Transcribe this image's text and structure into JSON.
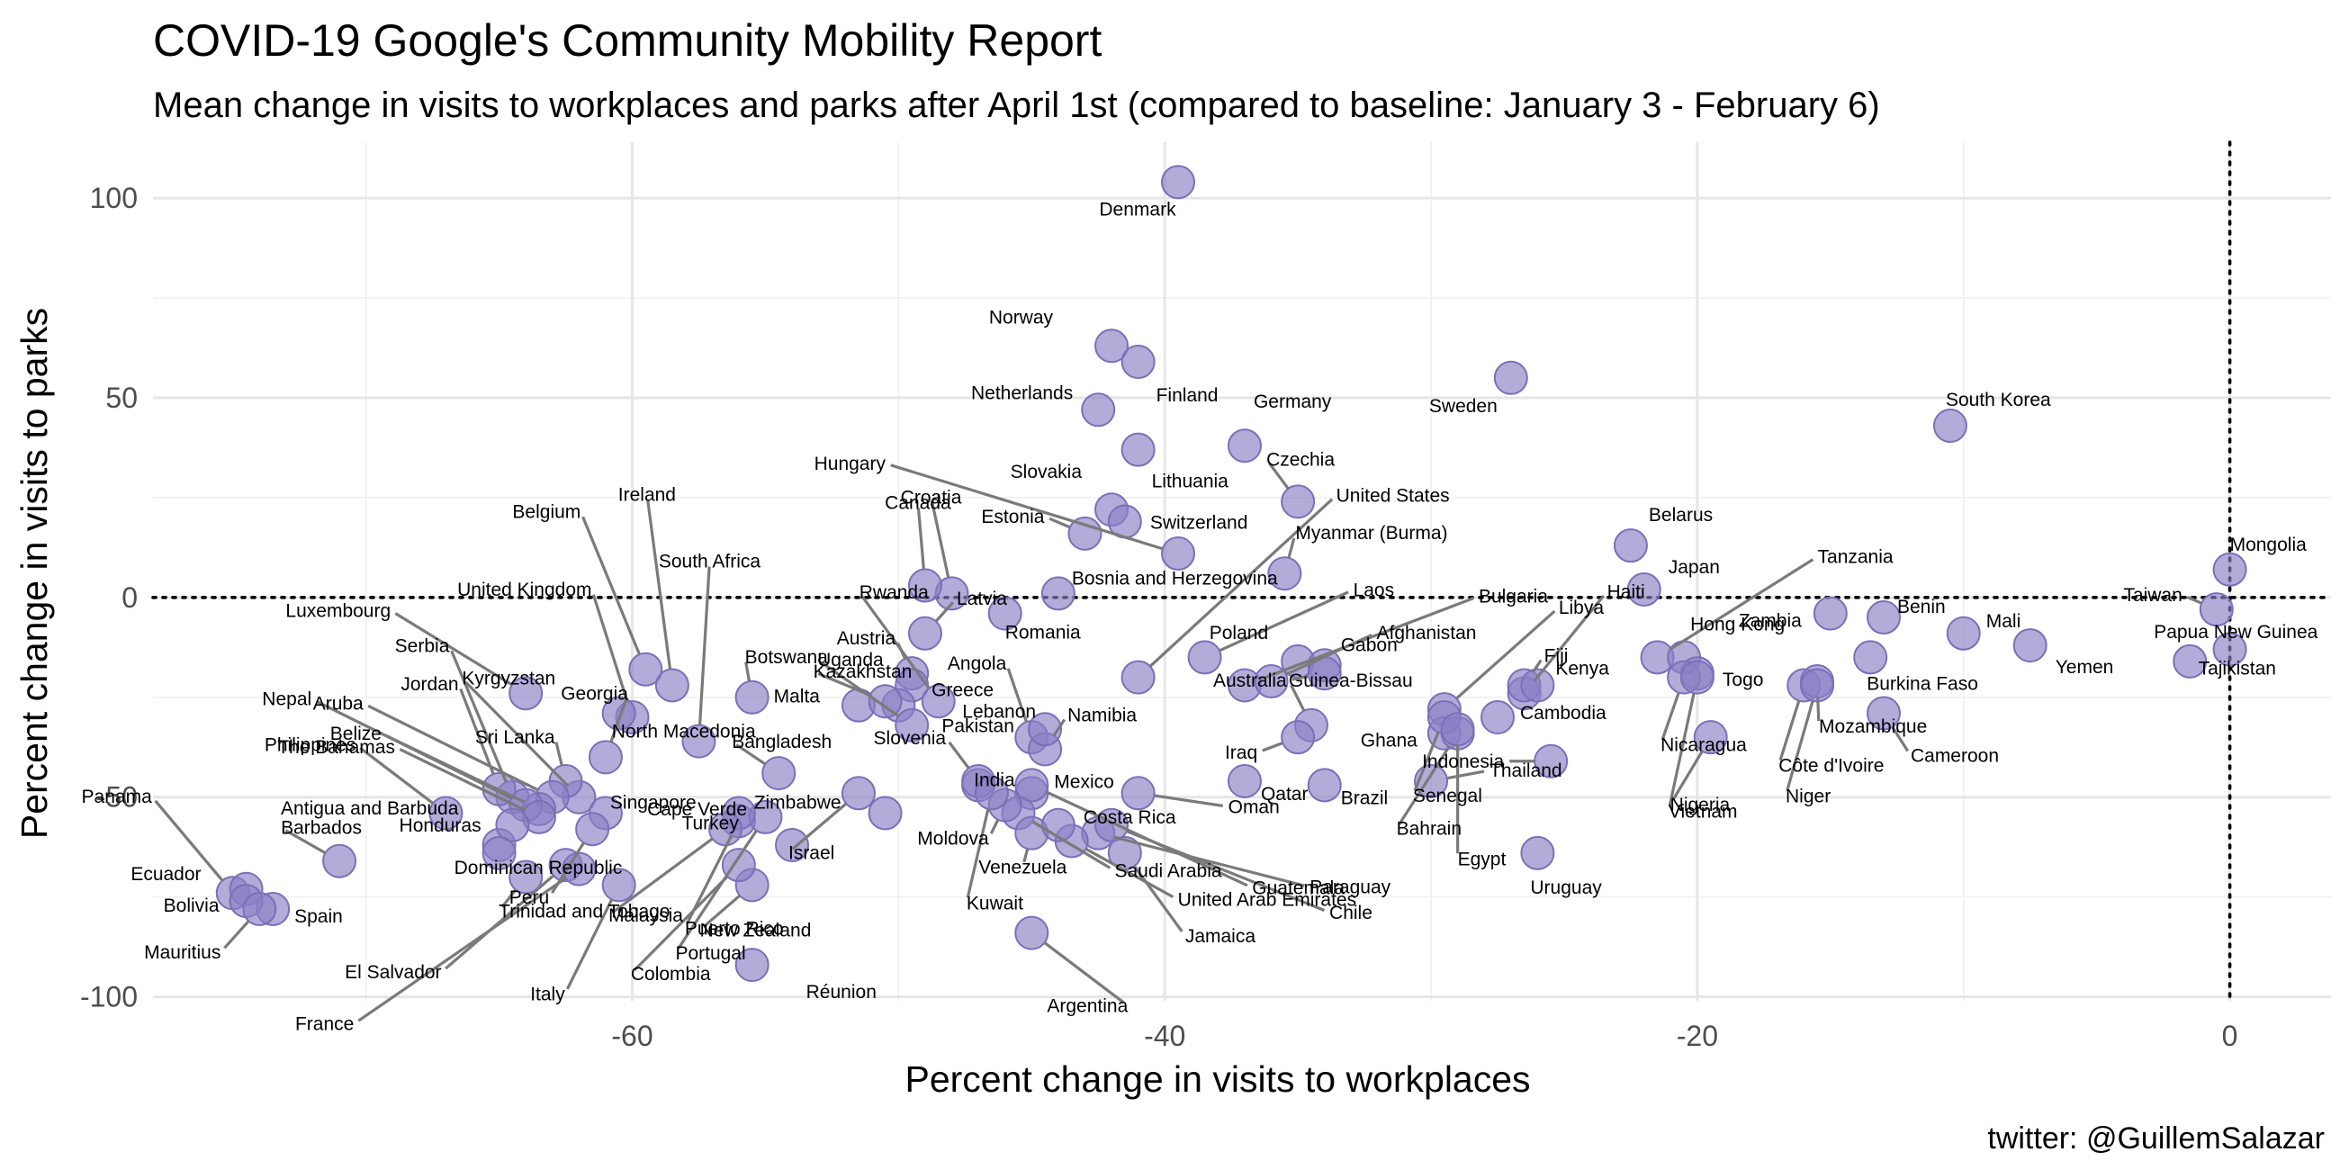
{
  "chart_data": {
    "type": "scatter",
    "title": "COVID-19 Google's Community Mobility Report",
    "subtitle": "Mean change in visits to workplaces and parks after April 1st (compared to baseline: January 3 - February 6)",
    "xlabel": "Percent change in visits to workplaces",
    "ylabel": "Percent change in visits to parks",
    "caption": "twitter: @GuillemSalazar",
    "xlim": [
      -78,
      3.8
    ],
    "ylim": [
      -101,
      114
    ],
    "x_ticks": [
      -60,
      -40,
      -20,
      0
    ],
    "x_tick_labels": [
      "-60",
      "-40",
      "-20",
      "0"
    ],
    "y_ticks": [
      -100,
      -50,
      0,
      50,
      100
    ],
    "y_tick_labels": [
      "-100",
      "-50",
      "0",
      "50",
      "100"
    ],
    "reference_lines": {
      "x": 0,
      "y": 0,
      "style": "dotted"
    },
    "grid": true,
    "legend": "none",
    "point_color": "#8b80c4",
    "point_opacity": 0.65,
    "points": [
      {
        "label": "Denmark",
        "x": -39.5,
        "y": 104
      },
      {
        "label": "Norway",
        "x": -42.0,
        "y": 63
      },
      {
        "label": "Finland",
        "x": -41.0,
        "y": 59
      },
      {
        "label": "Sweden",
        "x": -27.0,
        "y": 55
      },
      {
        "label": "South Korea",
        "x": -10.5,
        "y": 43
      },
      {
        "label": "Netherlands",
        "x": -42.5,
        "y": 47
      },
      {
        "label": "Germany",
        "x": -37.0,
        "y": 38
      },
      {
        "label": "Czechia",
        "x": -35.0,
        "y": 24
      },
      {
        "label": "Lithuania",
        "x": -41.0,
        "y": 37
      },
      {
        "label": "Hungary",
        "x": -39.5,
        "y": 11
      },
      {
        "label": "Slovakia",
        "x": -42.0,
        "y": 22
      },
      {
        "label": "Switzerland",
        "x": -41.5,
        "y": 19
      },
      {
        "label": "Estonia",
        "x": -43.0,
        "y": 16
      },
      {
        "label": "Croatia",
        "x": -48.0,
        "y": 1
      },
      {
        "label": "Canada",
        "x": -49.0,
        "y": 3
      },
      {
        "label": "United States",
        "x": -41.0,
        "y": -20
      },
      {
        "label": "Myanmar (Burma)",
        "x": -35.5,
        "y": 6
      },
      {
        "label": "Latvia",
        "x": -49.0,
        "y": -9
      },
      {
        "label": "Bosnia and Herzegovina",
        "x": -44.0,
        "y": 1
      },
      {
        "label": "Austria",
        "x": -49.5,
        "y": -19
      },
      {
        "label": "Romania",
        "x": -46.0,
        "y": -4
      },
      {
        "label": "Greece",
        "x": -49.5,
        "y": -22
      },
      {
        "label": "Belarus",
        "x": -22.5,
        "y": 13
      },
      {
        "label": "Japan",
        "x": -22.0,
        "y": 2
      },
      {
        "label": "Bulgaria",
        "x": -37.0,
        "y": -22
      },
      {
        "label": "Haiti",
        "x": -26.5,
        "y": -24
      },
      {
        "label": "Tanzania",
        "x": -21.5,
        "y": -15
      },
      {
        "label": "Mongolia",
        "x": 0.0,
        "y": 7
      },
      {
        "label": "Taiwan",
        "x": -0.5,
        "y": -3
      },
      {
        "label": "Benin",
        "x": -13.0,
        "y": -5
      },
      {
        "label": "Mali",
        "x": -10.0,
        "y": -9
      },
      {
        "label": "Papua New Guinea",
        "x": -1.5,
        "y": -16
      },
      {
        "label": "Tajikistan",
        "x": 0.0,
        "y": -13
      },
      {
        "label": "Yemen",
        "x": -7.5,
        "y": -12
      },
      {
        "label": "Burkina Faso",
        "x": -13.5,
        "y": -15
      },
      {
        "label": "Zambia",
        "x": -15.0,
        "y": -4
      },
      {
        "label": "Laos",
        "x": -38.5,
        "y": -15
      },
      {
        "label": "Afghanistan",
        "x": -36.0,
        "y": -21
      },
      {
        "label": "Libya",
        "x": -29.5,
        "y": -28
      },
      {
        "label": "Hong Kong",
        "x": -20.5,
        "y": -15
      },
      {
        "label": "Fiji",
        "x": -26.5,
        "y": -22
      },
      {
        "label": "Kenya",
        "x": -26.0,
        "y": -22
      },
      {
        "label": "Togo",
        "x": -20.0,
        "y": -19
      },
      {
        "label": "Poland",
        "x": -35.0,
        "y": -16
      },
      {
        "label": "Gabon",
        "x": -34.0,
        "y": -17
      },
      {
        "label": "Australia",
        "x": -34.0,
        "y": -19
      },
      {
        "label": "Angola",
        "x": -45.0,
        "y": -35
      },
      {
        "label": "Pakistan",
        "x": -50.0,
        "y": -27
      },
      {
        "label": "Namibia",
        "x": -44.5,
        "y": -38
      },
      {
        "label": "Lebanon",
        "x": -44.5,
        "y": -33
      },
      {
        "label": "Guinea-Bissau",
        "x": -34.5,
        "y": -32
      },
      {
        "label": "Iraq",
        "x": -35.0,
        "y": -35
      },
      {
        "label": "Ghana",
        "x": -29.5,
        "y": -34
      },
      {
        "label": "Cambodia",
        "x": -27.5,
        "y": -30
      },
      {
        "label": "Nicaragua",
        "x": -20.5,
        "y": -20
      },
      {
        "label": "Côte d'Ivoire",
        "x": -16.0,
        "y": -22
      },
      {
        "label": "Mozambique",
        "x": -15.5,
        "y": -21
      },
      {
        "label": "Cameroon",
        "x": -13.0,
        "y": -29
      },
      {
        "label": "Niger",
        "x": -15.5,
        "y": -22
      },
      {
        "label": "Vietnam",
        "x": -20.0,
        "y": -20
      },
      {
        "label": "Bahrain",
        "x": -29.0,
        "y": -34
      },
      {
        "label": "Nigeria",
        "x": -19.5,
        "y": -35
      },
      {
        "label": "Indonesia",
        "x": -25.5,
        "y": -41
      },
      {
        "label": "Senegal",
        "x": -29.5,
        "y": -30
      },
      {
        "label": "Egypt",
        "x": -29.0,
        "y": -33
      },
      {
        "label": "Qatar",
        "x": -37.0,
        "y": -46
      },
      {
        "label": "Brazil",
        "x": -34.0,
        "y": -47
      },
      {
        "label": "Thailand",
        "x": -30.0,
        "y": -46
      },
      {
        "label": "Uruguay",
        "x": -26.0,
        "y": -64
      },
      {
        "label": "Oman",
        "x": -41.0,
        "y": -49
      },
      {
        "label": "India",
        "x": -47.0,
        "y": -47
      },
      {
        "label": "Mexico",
        "x": -45.0,
        "y": -49
      },
      {
        "label": "Guatemala",
        "x": -45.0,
        "y": -47
      },
      {
        "label": "Saudi Arabia",
        "x": -45.5,
        "y": -54
      },
      {
        "label": "Paraguay",
        "x": -42.5,
        "y": -59
      },
      {
        "label": "United Arab Emirates",
        "x": -43.5,
        "y": -61
      },
      {
        "label": "Chile",
        "x": -42.0,
        "y": -57
      },
      {
        "label": "Jamaica",
        "x": -41.5,
        "y": -64
      },
      {
        "label": "Venezuela",
        "x": -45.0,
        "y": -59
      },
      {
        "label": "Costa Rica",
        "x": -44.0,
        "y": -57
      },
      {
        "label": "Argentina",
        "x": -45.0,
        "y": -84
      },
      {
        "label": "Moldova",
        "x": -46.0,
        "y": -52
      },
      {
        "label": "Slovenia",
        "x": -47.0,
        "y": -46
      },
      {
        "label": "Kuwait",
        "x": -46.5,
        "y": -49
      },
      {
        "label": "Zimbabwe",
        "x": -50.5,
        "y": -54
      },
      {
        "label": "Israel",
        "x": -51.5,
        "y": -49
      },
      {
        "label": "Puerto Rico",
        "x": -56.0,
        "y": -56
      },
      {
        "label": "Portugal",
        "x": -55.0,
        "y": -55
      },
      {
        "label": "Réunion",
        "x": -55.5,
        "y": -92
      },
      {
        "label": "Turkey",
        "x": -56.0,
        "y": -54
      },
      {
        "label": "New Zealand",
        "x": -55.5,
        "y": -72
      },
      {
        "label": "Colombia",
        "x": -56.0,
        "y": -67
      },
      {
        "label": "Malaysia",
        "x": -56.5,
        "y": -58
      },
      {
        "label": "Cape Verde",
        "x": -54.0,
        "y": -62
      },
      {
        "label": "Bangladesh",
        "x": -54.5,
        "y": -44
      },
      {
        "label": "Malta",
        "x": -51.5,
        "y": -27
      },
      {
        "label": "Kazakhstan",
        "x": -50.5,
        "y": -26
      },
      {
        "label": "Uganda",
        "x": -49.5,
        "y": -32
      },
      {
        "label": "Rwanda",
        "x": -48.5,
        "y": -26
      },
      {
        "label": "Botswana",
        "x": -55.5,
        "y": -25
      },
      {
        "label": "South Africa",
        "x": -57.5,
        "y": -36
      },
      {
        "label": "Ireland",
        "x": -58.5,
        "y": -22
      },
      {
        "label": "Belgium",
        "x": -59.5,
        "y": -18
      },
      {
        "label": "United Kingdom",
        "x": -60.0,
        "y": -30
      },
      {
        "label": "Luxembourg",
        "x": -64.0,
        "y": -24
      },
      {
        "label": "Georgia",
        "x": -61.0,
        "y": -40
      },
      {
        "label": "North Macedonia",
        "x": -60.5,
        "y": -29
      },
      {
        "label": "Serbia",
        "x": -64.5,
        "y": -50
      },
      {
        "label": "Kyrgyzstan",
        "x": -62.0,
        "y": -50
      },
      {
        "label": "Jordan",
        "x": -65.0,
        "y": -48
      },
      {
        "label": "Sri Lanka",
        "x": -62.5,
        "y": -46
      },
      {
        "label": "Singapore",
        "x": -61.0,
        "y": -54
      },
      {
        "label": "Aruba",
        "x": -63.0,
        "y": -50
      },
      {
        "label": "Belize",
        "x": -63.5,
        "y": -53
      },
      {
        "label": "Honduras",
        "x": -65.0,
        "y": -62
      },
      {
        "label": "Trinidad and Tobago",
        "x": -64.0,
        "y": -70
      },
      {
        "label": "Peru",
        "x": -61.5,
        "y": -58
      },
      {
        "label": "Italy",
        "x": -60.5,
        "y": -72
      },
      {
        "label": "El Salvador",
        "x": -62.5,
        "y": -67
      },
      {
        "label": "France",
        "x": -62.0,
        "y": -68
      },
      {
        "label": "Nepal",
        "x": -64.0,
        "y": -52
      },
      {
        "label": "Philippines",
        "x": -67.0,
        "y": -54
      },
      {
        "label": "The Bahamas",
        "x": -63.5,
        "y": -55
      },
      {
        "label": "Antigua and Barbuda",
        "x": -64.5,
        "y": -57
      },
      {
        "label": "Dominican Republic",
        "x": -65.0,
        "y": -64
      },
      {
        "label": "Barbados",
        "x": -71.0,
        "y": -66
      },
      {
        "label": "Panama",
        "x": -75.0,
        "y": -74
      },
      {
        "label": "Ecuador",
        "x": -74.5,
        "y": -73
      },
      {
        "label": "Spain",
        "x": -73.5,
        "y": -78
      },
      {
        "label": "Bolivia",
        "x": -74.5,
        "y": -76
      },
      {
        "label": "Mauritius",
        "x": -74.0,
        "y": -78
      }
    ]
  }
}
